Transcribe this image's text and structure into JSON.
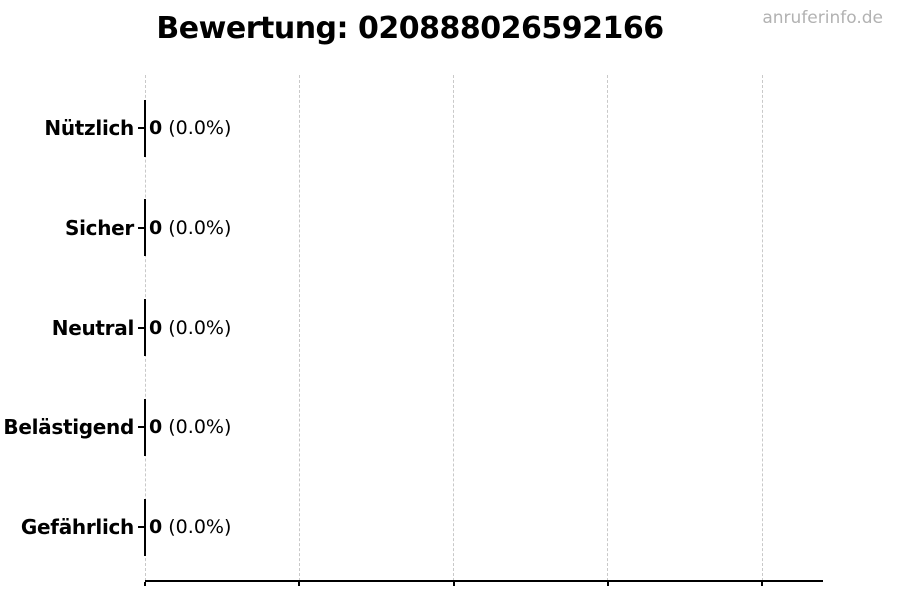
{
  "watermark": "anruferinfo.de",
  "chart_data": {
    "type": "bar",
    "orientation": "horizontal",
    "title": "Bewertung: 020888026592166",
    "categories": [
      "Nützlich",
      "Sicher",
      "Neutral",
      "Belästigend",
      "Gefährlich"
    ],
    "values": [
      0,
      0,
      0,
      0,
      0
    ],
    "rows": [
      {
        "label": "Nützlich",
        "count": "0",
        "percent": "(0.0%)"
      },
      {
        "label": "Sicher",
        "count": "0",
        "percent": "(0.0%)"
      },
      {
        "label": "Neutral",
        "count": "0",
        "percent": "(0.0%)"
      },
      {
        "label": "Belästigend",
        "count": "0",
        "percent": "(0.0%)"
      },
      {
        "label": "Gefährlich",
        "count": "0",
        "percent": "(0.0%)"
      }
    ],
    "xlabel": "",
    "ylabel": "",
    "x_tick_labels": [
      "",
      "",
      "",
      "",
      ""
    ],
    "xlim_note": "5 unlabeled ticks, axis extends past last gridline",
    "grid": "vertical dashed gridlines",
    "legend": "none",
    "bar_color": "#000000"
  },
  "colors": {
    "background": "#ffffff",
    "text": "#000000",
    "axis": "#000000",
    "grid": "#c9c9c9",
    "watermark": "#b2b2b2"
  }
}
